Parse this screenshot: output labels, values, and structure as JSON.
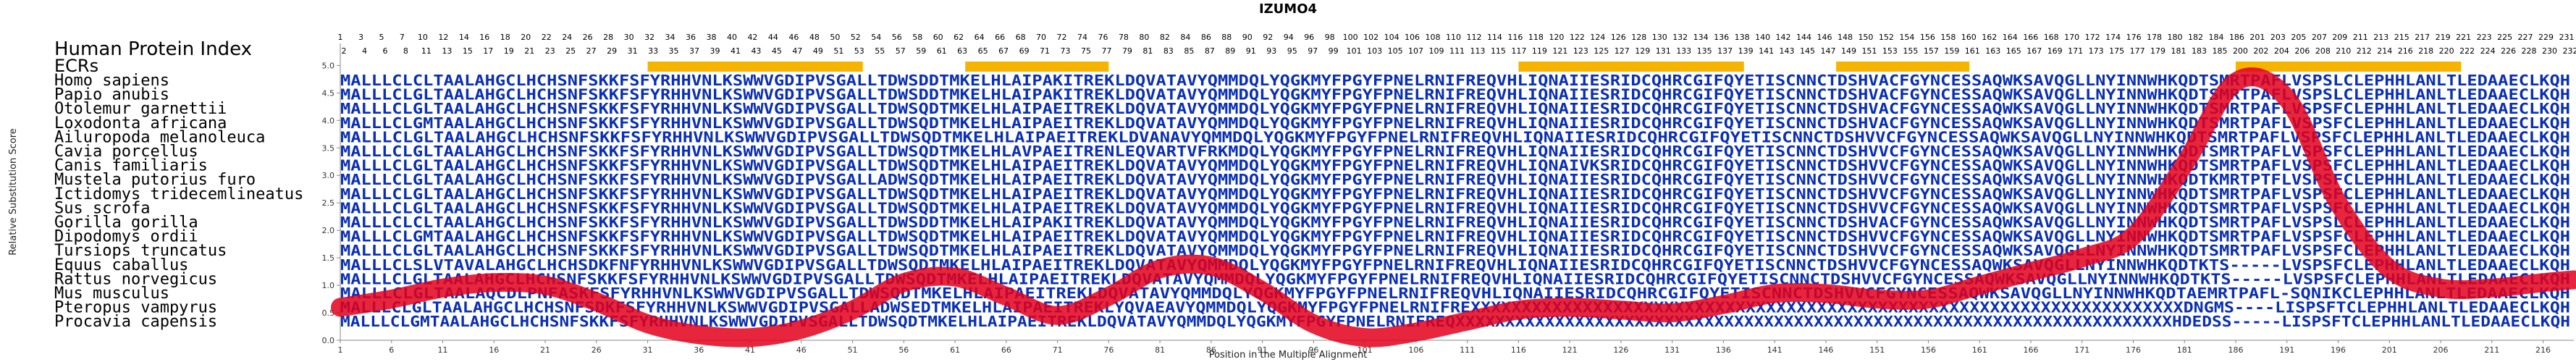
{
  "chart_data": {
    "type": "line",
    "title": "IZUMO4",
    "xlabel": "Position in the Multiple Alignment",
    "ylabel": "Relative Substitution Score",
    "xlim": [
      1,
      219
    ],
    "ylim": [
      0,
      5.4
    ],
    "yticks": [
      "0.0",
      "0.5",
      "1.0",
      "1.5",
      "2.0",
      "2.5",
      "3.0",
      "3.5",
      "4.0",
      "4.5",
      "5.0"
    ],
    "xticks": [
      1,
      6,
      11,
      16,
      21,
      26,
      31,
      36,
      41,
      46,
      51,
      56,
      61,
      66,
      71,
      76,
      81,
      86,
      91,
      96,
      101,
      106,
      111,
      116,
      121,
      126,
      131,
      136,
      141,
      146,
      151,
      156,
      161,
      166,
      171,
      176,
      181,
      186,
      191,
      196,
      201,
      206,
      211,
      216
    ],
    "human_index_label": "Human Protein Index",
    "ecr_label": "ECRs",
    "human_index_top": [
      "1",
      "3",
      "5",
      "7",
      "10",
      "12",
      "14",
      "16",
      "18",
      "20",
      "22",
      "24",
      "26",
      "28",
      "30",
      "32",
      "34",
      "36",
      "38",
      "40",
      "42",
      "44",
      "46",
      "48",
      "50",
      "52",
      "54",
      "56",
      "58",
      "60",
      "62",
      "64",
      "66",
      "68",
      "70",
      "72",
      "74",
      "76",
      "78",
      "80",
      "82",
      "84",
      "86",
      "88",
      "90",
      "92",
      "94",
      "96",
      "98",
      "100",
      "102",
      "104",
      "106",
      "108",
      "110",
      "112",
      "114",
      "116",
      "118",
      "120",
      "122",
      "124",
      "126",
      "128",
      "130",
      "132",
      "134",
      "136",
      "138",
      "140",
      "142",
      "144",
      "146",
      "148",
      "150",
      "152",
      "154",
      "156",
      "158",
      "160",
      "162",
      "164",
      "166",
      "168",
      "170",
      "172",
      "174",
      "176",
      "178",
      "180",
      "182",
      "184",
      "186",
      "201",
      "203",
      "205",
      "207",
      "209",
      "211",
      "213",
      "215",
      "217",
      "219",
      "221",
      "223",
      "225",
      "227",
      "229",
      "231"
    ],
    "human_index_bottom": [
      "2",
      "4",
      "6",
      "8",
      "11",
      "13",
      "15",
      "17",
      "19",
      "21",
      "23",
      "25",
      "27",
      "29",
      "31",
      "33",
      "35",
      "37",
      "39",
      "41",
      "43",
      "45",
      "47",
      "49",
      "51",
      "53",
      "55",
      "57",
      "59",
      "61",
      "63",
      "65",
      "67",
      "69",
      "71",
      "73",
      "75",
      "77",
      "79",
      "81",
      "83",
      "85",
      "87",
      "89",
      "91",
      "93",
      "95",
      "97",
      "99",
      "101",
      "103",
      "105",
      "107",
      "109",
      "111",
      "113",
      "115",
      "117",
      "119",
      "121",
      "123",
      "125",
      "127",
      "129",
      "131",
      "133",
      "135",
      "137",
      "139",
      "141",
      "143",
      "145",
      "147",
      "149",
      "151",
      "153",
      "155",
      "157",
      "159",
      "161",
      "163",
      "165",
      "167",
      "169",
      "171",
      "173",
      "175",
      "177",
      "179",
      "181",
      "183",
      "185",
      "200",
      "202",
      "204",
      "206",
      "208",
      "210",
      "212",
      "214",
      "216",
      "218",
      "220",
      "222",
      "224",
      "226",
      "228",
      "230",
      "232"
    ],
    "ecrs": [
      [
        31,
        52
      ],
      [
        62,
        76
      ],
      [
        116,
        138
      ],
      [
        147,
        160
      ],
      [
        186,
        208
      ]
    ],
    "species": [
      {
        "name": "Homo sapiens",
        "sequence": "MALLLCLCLTAALAHGCLHCHSNFSKKFSFYRHHVNLKSWWVGDIPVSGALLTDWSDDTMKELHLAIPAKITREKLDQVATAVYQMMDQLYQGKMYFPGYFPNELRNIFREQVHLIQNAIIESRIDCQHRCGIFQYETISCNNCTDSHVACFGYNCESSAQWKSAVQGLLNYINNWHKQDTSMRTPAFLVSPSLCLEPHHLANLTLEDAAECLKQH"
      },
      {
        "name": "Papio anubis",
        "sequence": "MALLLCLGLTAALAHGCLHCHSNFSKKFSFYRHHVNLKSWWVGDIPVSGALLTDWSDDTMKELHLAIPAKITREKLDQVATAVYQMMDQLYQGKMYFPGYFPNELRNIFREQVHLIQNAIIESRIDCQHRCGIFQYETISCNNCTDSHVACFGYNCESSAQWKSAVQGLLNYINNWHKQDTSMRTPAFLVSPSLCLEPHHLANLTLEDAAECLKQH"
      },
      {
        "name": "Otolemur garnettii",
        "sequence": "MALLLCLGLTAALAHGCLHCHSNFSKKFSFYRHHVNLKSWWVGDIPVSGALLTDWSQDTMKELHLAIPAEITREKLDQVATAVYQMMDQLYQGKMYFPGYFPNELRNIFREQVHLIQNAIIESRIDCQHRCGIFQYETISCNNCTDSHVACFGYNCESSAQWKSAVQGLLNYINNWHKQDTSMRTPAFLVSPSFCLEPHHLANLTLEDAAECLKQH"
      },
      {
        "name": "Loxodonta africana",
        "sequence": "MALLLCLGMTAALAHGCLHCHSNFSKKFSFYRHHVNLKSWWVGDIPVSGALLTDWSQDTMKELHLAIPAEITREKLDQVATAVYQMMDQLYQGKMYFPGYFPNELRNIFREQVHLIQNAIIESRIDCQHRCGIFQYETISCNNCTDSHVACFGYNCESSAQWKSAVQGLLNYINNWHKQDTSMRTPAFLVSPSFCLEPHHLANLTLEDAAECLKQH"
      },
      {
        "name": "Ailuropoda melanoleuca",
        "sequence": "MALLLCLGLTAALAHGCLHCHSNFSKKFSFYRHHVNLKSWWVGDIPVSGALLTDWSQDTMKELHLAIPAEITREKLDVANAVYQMMDQLYQGKMYFPGYFPNELRNIFREQVHLIQNAIIESRIDCQHRCGIFQYETISCNNCTDSHVVCFGYNCESSAQWKSAVQGLLNYINNWHKQDTSMRTPAFLVSPSFCLEPHHLANLTLEDAAECLKQH"
      },
      {
        "name": "Cavia porcellus",
        "sequence": "MALLLCLGLTAALAHGCLHCHSNFSKKFSFYRHHVNLKSWWVGDIPVSGALLTDWSQDTMKELHLAVPAEITRENLEQVARTVFRKMDQLYQGKMYFPGYFPNELRNIFREQVHLIQNAIIESRIDCQHRCGIFQYETISCNNCTDSHVVCFGYNCESSAQWKSAVQGLLNYINNWHKQDTSMRTPAFLVSPSFCLEPHHLANLTLEDAAECLKQH"
      },
      {
        "name": "Canis familiaris",
        "sequence": "MALLLCLGLTAALAHGCLHCHSNFSKKFSFYRHHVNLKSWWVGDIPVSGALLTDWSQDTMKELHLAIPAEITREKLDQVATAVYQMMDQLYQGKMYFPGYFPNELRNIFREQVHLIQNAIVKSRIDCQHRCGIFQYETISCNNCTDSHVVCFGYNCESSAQWKSAVQGLLNYINNWHKQDTSMRTPAFLVSPSFCLEPHHLANLTLEDAAECLKQH"
      },
      {
        "name": "Mustela putorius furo",
        "sequence": "MALLLCLGLTAALAHGCLHCHSNFSKKFSFYRHHVNLKSWWVGDIPVSGALLADWSQDTMKELHLAIPAEITREKLDQVATAVYQMMDQLYQGKMYFPGYFPNELRNIFREQVHLIQNAIIESRIDCQHRCGIFQYETISCNNCTDSHVVCFGYNCESSAQWKSAVQGLLNYINNWHKQDTKMRTPTFLVSPSFCLEPHHLANLTLEDAAECLKQH"
      },
      {
        "name": "Ictidomys tridecemlineatus",
        "sequence": "MALLLCLGLTAALAHGCLHCHSNFSKKFSFYRHHVNLKSWWVGDIPVSGALLTDWSQDTMKELHLAIPAEITREKLDQVATAVYQMMDQLYQGKMYFPGYFPNELRNIFREQVHLIQNAIIESRIDCQHRCGIFQYETISCNNCTDSHVVCFGYNCESSAQWKSAVQGLLNYINNWHKQDTSMRTPAFLVSPSFCLEPHHLANLTLEDAAECLKQH"
      },
      {
        "name": "Sus scrofa",
        "sequence": "MALLLCLGLTAALAHGCLHCHSNFSKKFSFYRHHVNLKSWWVGDIPVSGALLTDWSQDTMKELHLAIPAEITREKLDQVATAVYQMMDQLYQGKMYFPGYFPNELRNIFREQVHLIQNAIIESRIDCQHRCGIFQYETISCNNCTDSHVVCFGYNCESSAQWKSAVQGLLNYINNWHKQDTSMRTPAFLVSPSFCLEPHHLANLTLEDAAECLKQH"
      },
      {
        "name": "Gorilla gorilla",
        "sequence": "MALLLCLCLTAALAHGCLHCHSNFSKKFSFYRHHVNLKSWWVGDIPVSGALLTDWSDDTMKELHLAIPAKITREKLDQVATAVYQMMDQLYQGKMYFPGYFPNELRNIFREQVHLIQNAIIESRIDCQHRCGIFQYETISCNNCTDSHVACFGYNCESSAQWKSAVQGLLNYINNWHKQDTSMRTPAFLVSPSLCLEPHHLANLTLEDAAECLKQH"
      },
      {
        "name": "Dipodomys ordii",
        "sequence": "MALLLCLGMTAALAHGCLHCHSNFSKKFSFYRHHVNLKSWWVGDIPVSGALLTDWSQDTMKELHLAIPAEITREKLDQVATAVYQMMDQLYQGKMYFPGYFPNELRNIFREQVHLIQNAIIESRIDCQHRCGIFQYETISCNNCTDSHVVCFGYNCESSAQWKSAVQGLLNYINNWHKQDTSMRTPAFLVSPSFCLEPHHLANLTLEDAAECLKQH"
      },
      {
        "name": "Tursiops truncatus",
        "sequence": "MALLLCLGLTAALAHGCLHCHSNFSKKFSFYRHHVNLKSWWVGDIPVSGALLTDWSQDTMKELHLAIPAEITREKLDQVATAVYQMMDQLYQGKMYFPGYFPNELRNIFREQVHLIQNAIIESRIDCQHRCGIFQYETISCNNCTDSHVVCFGYNCESSAQWKSAVQGLLNYINNWHKQDTSMRTPAFLVSPSFCLEPHHLANLTLEDAAECLKQH"
      },
      {
        "name": "Equus caballus",
        "sequence": "MALLLCLSLVTAVALAHGCLHCHSDKFNFYRHHVNLKSWWVGDIPVSGALLTDWSQDTMKELHLAIPAEITREKLDQVATAVYQMMDQLYQGKMYFPGYFPNELRNIFREQVHLIQNAIIESRIDCQHRCGIFQYETISCNNCTDSHVVCFGYNCESSAQWKSAVQGLLNYINNWHKQDTKTS-----LVSPSFCLEPHHLANLTLEDAAECLKQH"
      },
      {
        "name": "Rattus norvegicus",
        "sequence": "MALLLCLGLTAALAHGCLHCHSNFSKKFSFYRHHVNLKSWWVGDIPVSGALLTDWSQDTMKELHLAIPAEITREKLDQVATAVYQMMDQLYQGKMYFPGYFPNELRNIFREQVHLIQNAIIESRIDCQHRCGIFQYETISCNNCTDSHVVCFGYNCESSAQWKSAVQGLLNYINNWHKQDTKTS-----LVSPSFCLEPHHLANLTLEDAAECLKQH"
      },
      {
        "name": "Mus musculus",
        "sequence": "MALLLCLGLTAALAQCDLPNFASKFSFYRHHVNLKSWWVGDIPVSGALLTDWSQDTMKELHLAIPAEITREKLDQVATAVYQMMDQLYQGKMYFPGYFPNELRNIFREQVHLIQNAIIESRIDCQHRCGIFQYETISCNNCTDSHVVCFGYNCESSAQWKSAVQGLLNYINNWHKQDTAEMRTPAFL-SQNIKCLEPHHLANLTLEDAAECLKQH"
      },
      {
        "name": "Pteropus vampyrus",
        "sequence": "MALLLCLGLTAALAHGCLHCHSNFSDKFSFYRHHVNLKSWWVGDIPVSGALLADWSEDTMKELHLAIPAEITREKLYQVAEAVYQMMDQLYQGKMYFPGYFPNELRNIFREXXXXXXXXXXXXXXXXXXXXXXXXXXXXXXXXXXXXXXXXXXXXXXXXXXXXXXXXXXXXXXXXXXXXXXDNGMS----LISPSFTCLEPHHLANLTLEDAAECLKQH"
      },
      {
        "name": "Procavia capensis",
        "sequence": "MALLLCLGMTAALAHGCLHCHSNFSKKFSFYRHHVNLKSWWVGDIPVSGALLTDWSQDTMKELHLAIPAEITREKLDQVATAVYQMMDQLYQGKMYFPGYFPNELRNIFREQXXXXXXXXXXXXXXXXXXXXXXXXXXXXXXXXXXXXXXXXXXXXXXXXXXXXXXXXXXXXXXXXXXXXXXXXHDEDSS-----LISPSFTCLEPHHLANLTLEDAAECLKQH"
      }
    ],
    "curve": {
      "x": [
        1,
        6,
        11,
        16,
        21,
        26,
        31,
        36,
        41,
        46,
        51,
        56,
        61,
        66,
        71,
        76,
        81,
        86,
        91,
        96,
        101,
        106,
        111,
        116,
        121,
        126,
        131,
        136,
        141,
        146,
        151,
        156,
        161,
        166,
        171,
        176,
        181,
        186,
        191,
        196,
        201,
        206,
        211,
        216,
        219
      ],
      "y": [
        0.6,
        0.75,
        0.95,
        1.05,
        1.0,
        0.7,
        0.3,
        0.1,
        0.05,
        0.2,
        0.55,
        1.05,
        1.15,
        0.8,
        0.45,
        0.8,
        1.3,
        1.35,
        0.9,
        0.3,
        0.05,
        0.15,
        0.35,
        0.55,
        0.6,
        0.55,
        0.5,
        0.65,
        0.85,
        0.85,
        0.75,
        0.75,
        1.0,
        1.25,
        1.5,
        1.9,
        3.2,
        4.7,
        4.4,
        2.5,
        1.3,
        0.95,
        0.95,
        1.05,
        1.1
      ]
    }
  },
  "colors": {
    "ecr": "#f5b400",
    "seq_text": "#0a2fb5",
    "seq_faded": "#7f8fd0",
    "curve": "#e3001b",
    "axis": "#888888",
    "grid": "#bbbbbb"
  }
}
